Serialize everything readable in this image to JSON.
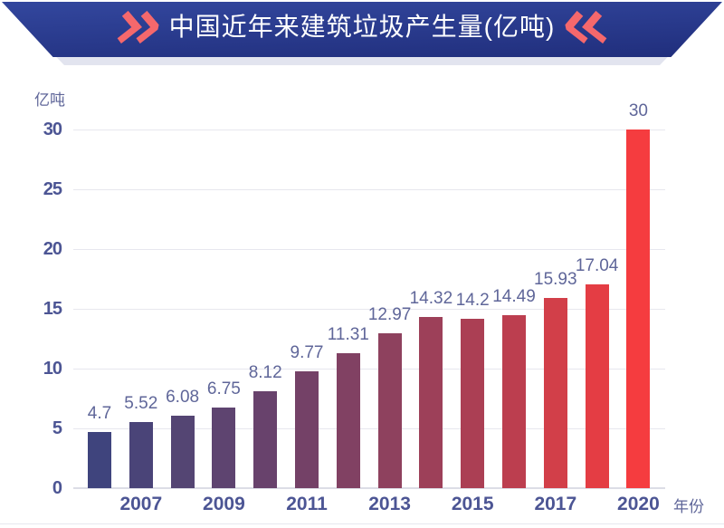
{
  "header": {
    "title": "中国近年来建筑垃圾产生量(亿吨)",
    "left_icon": "double-chevron-right",
    "right_icon": "double-chevron-left"
  },
  "chart_data": {
    "type": "bar",
    "title": "中国近年来建筑垃圾产生量(亿吨)",
    "ylabel": "亿吨",
    "xlabel": "年份",
    "ylim": [
      0,
      30
    ],
    "y_ticks": [
      0,
      5,
      10,
      15,
      20,
      25,
      30
    ],
    "grid": "horizontal",
    "values": [
      4.7,
      5.52,
      6.08,
      6.75,
      8.12,
      9.77,
      11.31,
      12.97,
      14.32,
      14.2,
      14.49,
      15.93,
      17.04,
      30
    ],
    "value_labels": [
      "4.7",
      "5.52",
      "6.08",
      "6.75",
      "8.12",
      "9.77",
      "11.31",
      "12.97",
      "14.32",
      "14.2",
      "14.49",
      "15.93",
      "17.04",
      "30"
    ],
    "x_ticks": [
      {
        "bar_index": 1,
        "label": "2007"
      },
      {
        "bar_index": 3,
        "label": "2009"
      },
      {
        "bar_index": 5,
        "label": "2011"
      },
      {
        "bar_index": 7,
        "label": "2013"
      },
      {
        "bar_index": 9,
        "label": "2015"
      },
      {
        "bar_index": 11,
        "label": "2017"
      },
      {
        "bar_index": 13,
        "label": "2020"
      }
    ],
    "bar_colors": [
      "#3f447d",
      "#4a4478",
      "#544573",
      "#5e4470",
      "#68426c",
      "#744167",
      "#814163",
      "#8e415e",
      "#9d4059",
      "#ab3f54",
      "#bc3e4f",
      "#d23f49",
      "#e43d44",
      "#f53c3f"
    ]
  },
  "colors": {
    "banner_top": "#33479e",
    "banner_bottom": "#202e7c",
    "banner_shadow": "#e2e4ef",
    "chevron": "#f5686c",
    "title_text": "#ffffff",
    "axis_text_strong": "#4c5594",
    "axis_text_soft": "#5f6699",
    "gridline": "#e7e7ee",
    "axis_line": "#dcdde6",
    "hairline": "#e6e7ee",
    "page_bg": "#ffffff"
  }
}
